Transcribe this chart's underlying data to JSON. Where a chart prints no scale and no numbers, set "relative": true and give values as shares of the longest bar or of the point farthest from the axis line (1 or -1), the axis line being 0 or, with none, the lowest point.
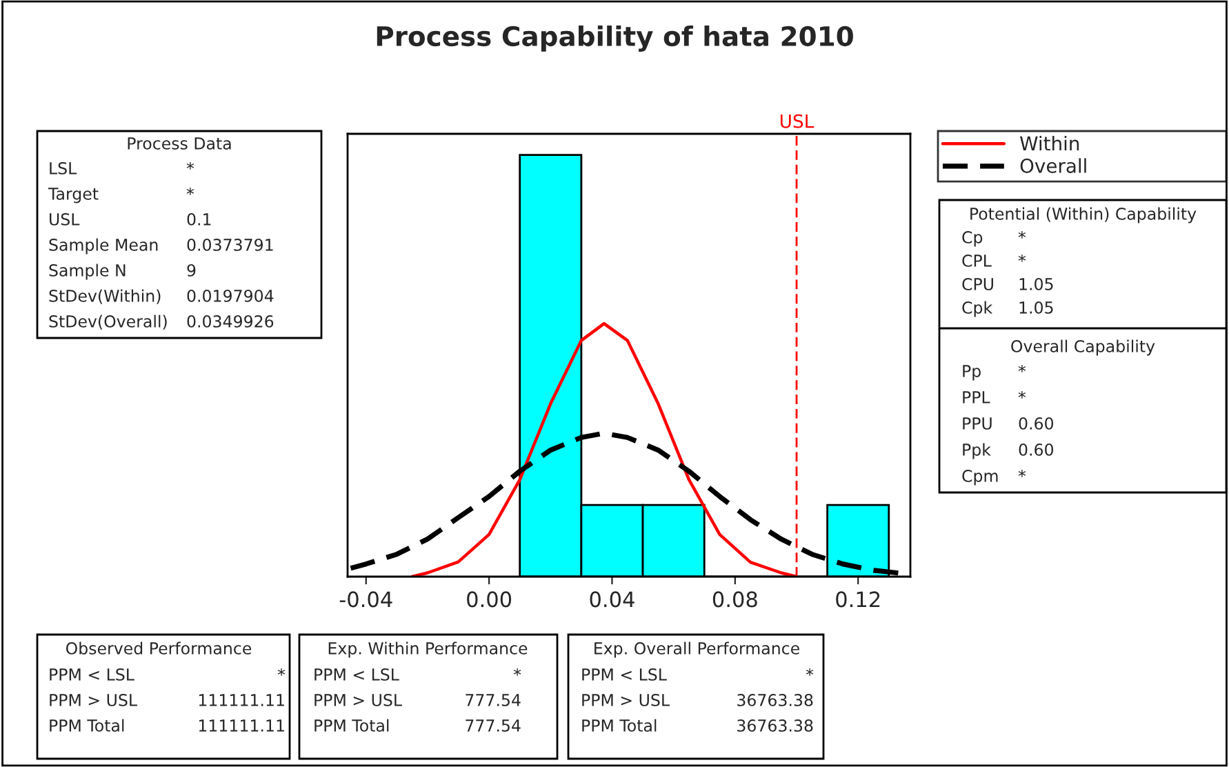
{
  "chart_data": {
    "type": "histogram",
    "title": "Process Capability of hata 2010",
    "relative": true,
    "bins": [
      0.01,
      0.03,
      0.05,
      0.07,
      0.09,
      0.11,
      0.13
    ],
    "values": [
      1,
      0.17,
      0.17,
      0,
      0,
      0.17
    ],
    "color": "#00ffff",
    "series": [
      {
        "name": "Within",
        "type": "line",
        "color": "#ff0000",
        "line_style": "solid",
        "x": [
          -0.025,
          -0.02,
          -0.01,
          0.0,
          0.01,
          0.02,
          0.03,
          0.0374,
          0.045,
          0.055,
          0.065,
          0.075,
          0.085,
          0.095,
          0.1
        ],
        "values": [
          0.0,
          0.009,
          0.035,
          0.1,
          0.23,
          0.41,
          0.56,
          0.6,
          0.56,
          0.41,
          0.23,
          0.1,
          0.034,
          0.009,
          0.0
        ]
      },
      {
        "name": "Overall",
        "type": "line",
        "color": "#000000",
        "line_style": "dashed",
        "x": [
          -0.045,
          -0.04,
          -0.03,
          -0.02,
          -0.01,
          0.0,
          0.01,
          0.02,
          0.03,
          0.0374,
          0.045,
          0.055,
          0.065,
          0.075,
          0.085,
          0.095,
          0.105,
          0.115,
          0.125,
          0.135
        ],
        "values": [
          0.02,
          0.03,
          0.053,
          0.089,
          0.14,
          0.19,
          0.25,
          0.3,
          0.33,
          0.34,
          0.33,
          0.3,
          0.25,
          0.19,
          0.135,
          0.089,
          0.053,
          0.03,
          0.015,
          0.007
        ]
      }
    ],
    "xlim": [
      -0.046,
      0.137
    ],
    "xticks": [
      {
        "value": -0.04,
        "label": "-0.04"
      },
      {
        "value": 0.0,
        "label": "0.00"
      },
      {
        "value": 0.04,
        "label": "0.04"
      },
      {
        "value": 0.08,
        "label": "0.08"
      },
      {
        "value": 0.12,
        "label": "0.12"
      }
    ],
    "tick_labels": "x",
    "grid": false,
    "legend": "top right",
    "ref_lines": [
      {
        "axis": "x",
        "value": 0.1,
        "label": "USL",
        "color": "#ff0000",
        "line_style": "dashed"
      }
    ],
    "annotations": [
      "Process Data",
      "LSL",
      "*",
      "Target",
      "*",
      "USL",
      "0.1",
      "Sample Mean",
      "0.0373791",
      "Sample N",
      "9",
      "StDev(Within)",
      "0.0197904",
      "StDev(Overall)",
      "0.0349926",
      "Potential (Within) Capability",
      "Cp",
      "*",
      "CPL",
      "*",
      "CPU",
      "1.05",
      "Cpk",
      "1.05",
      "Overall Capability",
      "Pp",
      "*",
      "PPL",
      "*",
      "PPU",
      "0.60",
      "Ppk",
      "0.60",
      "Cpm",
      "*",
      "Observed Performance",
      "PPM < LSL",
      "*",
      "PPM > USL",
      "111111.11",
      "PPM Total",
      "111111.11",
      "Exp. Within Performance",
      "PPM < LSL",
      "*",
      "PPM > USL",
      "777.54",
      "PPM Total",
      "777.54",
      "Exp. Overall Performance",
      "PPM < LSL",
      "*",
      "PPM > USL",
      "36763.38",
      "PPM Total",
      "36763.38"
    ]
  }
}
